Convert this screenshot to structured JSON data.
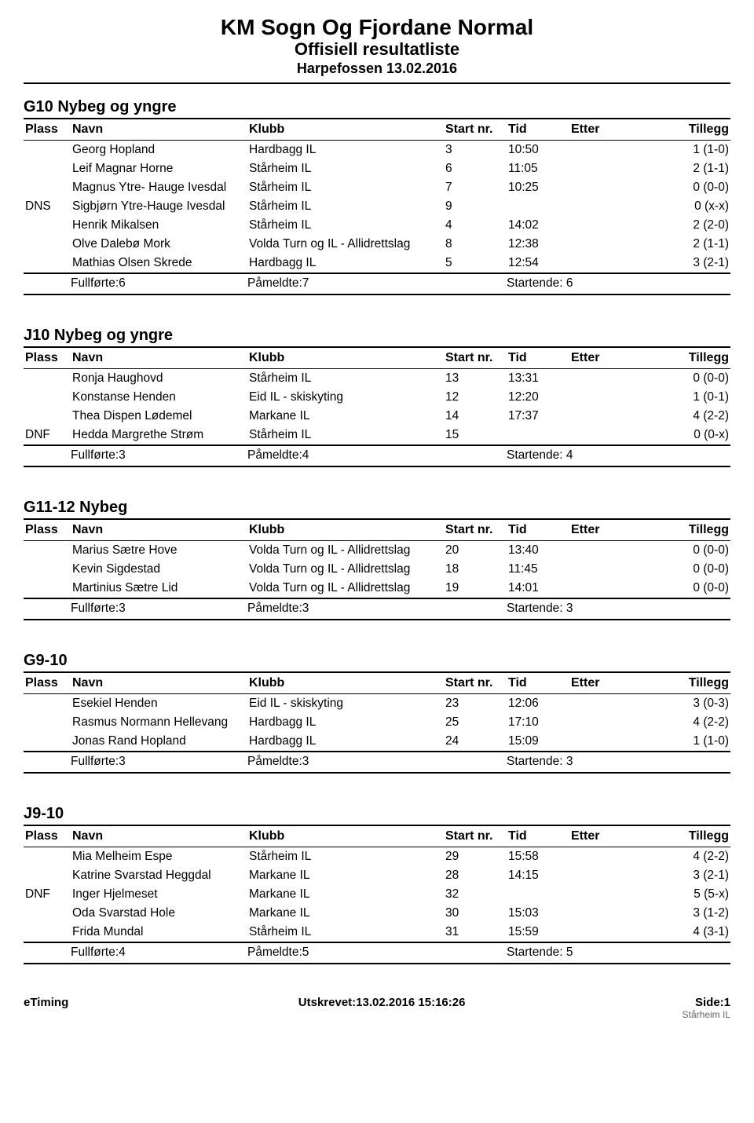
{
  "header": {
    "title": "KM Sogn Og Fjordane Normal",
    "subtitle": "Offisiell resultatliste",
    "venue": "Harpefossen 13.02.2016"
  },
  "columns": {
    "plass": "Plass",
    "navn": "Navn",
    "klubb": "Klubb",
    "start": "Start nr.",
    "tid": "Tid",
    "etter": "Etter",
    "tillegg": "Tillegg"
  },
  "summary_labels": {
    "fullforte": "Fullførte:",
    "pameldte": "Påmeldte:",
    "startende": "Startende:"
  },
  "footer": {
    "left": "eTiming",
    "center": "Utskrevet:13.02.2016 15:16:26",
    "right": "Side:1",
    "sub": "Stårheim IL"
  },
  "sections": [
    {
      "title": "G10 Nybeg og yngre",
      "rows": [
        {
          "plass": "",
          "navn": "Georg Hopland",
          "klubb": "Hardbagg IL",
          "start": "3",
          "tid": "10:50",
          "etter": "",
          "tillegg": "1 (1-0)"
        },
        {
          "plass": "",
          "navn": "Leif Magnar Horne",
          "klubb": "Stårheim IL",
          "start": "6",
          "tid": "11:05",
          "etter": "",
          "tillegg": "2 (1-1)"
        },
        {
          "plass": "",
          "navn": "Magnus Ytre- Hauge Ivesdal",
          "klubb": "Stårheim IL",
          "start": "7",
          "tid": "10:25",
          "etter": "",
          "tillegg": "0 (0-0)"
        },
        {
          "plass": "DNS",
          "navn": "Sigbjørn Ytre-Hauge Ivesdal",
          "klubb": "Stårheim IL",
          "start": "9",
          "tid": "",
          "etter": "",
          "tillegg": "0 (x-x)"
        },
        {
          "plass": "",
          "navn": "Henrik Mikalsen",
          "klubb": "Stårheim IL",
          "start": "4",
          "tid": "14:02",
          "etter": "",
          "tillegg": "2 (2-0)"
        },
        {
          "plass": "",
          "navn": "Olve Dalebø Mork",
          "klubb": "Volda Turn og IL - Allidrettslag",
          "start": "8",
          "tid": "12:38",
          "etter": "",
          "tillegg": "2 (1-1)"
        },
        {
          "plass": "",
          "navn": "Mathias Olsen Skrede",
          "klubb": "Hardbagg IL",
          "start": "5",
          "tid": "12:54",
          "etter": "",
          "tillegg": "3 (2-1)"
        }
      ],
      "summary": {
        "fullforte": "6",
        "pameldte": "7",
        "startende": "6"
      }
    },
    {
      "title": "J10 Nybeg og yngre",
      "rows": [
        {
          "plass": "",
          "navn": "Ronja Haughovd",
          "klubb": "Stårheim IL",
          "start": "13",
          "tid": "13:31",
          "etter": "",
          "tillegg": "0 (0-0)"
        },
        {
          "plass": "",
          "navn": "Konstanse Henden",
          "klubb": "Eid IL - skiskyting",
          "start": "12",
          "tid": "12:20",
          "etter": "",
          "tillegg": "1 (0-1)"
        },
        {
          "plass": "",
          "navn": "Thea Dispen Lødemel",
          "klubb": "Markane IL",
          "start": "14",
          "tid": "17:37",
          "etter": "",
          "tillegg": "4 (2-2)"
        },
        {
          "plass": "DNF",
          "navn": "Hedda Margrethe Strøm",
          "klubb": "Stårheim IL",
          "start": "15",
          "tid": "",
          "etter": "",
          "tillegg": "0 (0-x)"
        }
      ],
      "summary": {
        "fullforte": "3",
        "pameldte": "4",
        "startende": "4"
      }
    },
    {
      "title": "G11-12 Nybeg",
      "rows": [
        {
          "plass": "",
          "navn": "Marius Sætre Hove",
          "klubb": "Volda Turn og IL - Allidrettslag",
          "start": "20",
          "tid": "13:40",
          "etter": "",
          "tillegg": "0 (0-0)"
        },
        {
          "plass": "",
          "navn": "Kevin Sigdestad",
          "klubb": "Volda Turn og IL - Allidrettslag",
          "start": "18",
          "tid": "11:45",
          "etter": "",
          "tillegg": "0 (0-0)"
        },
        {
          "plass": "",
          "navn": "Martinius Sætre Lid",
          "klubb": "Volda Turn og IL - Allidrettslag",
          "start": "19",
          "tid": "14:01",
          "etter": "",
          "tillegg": "0 (0-0)"
        }
      ],
      "summary": {
        "fullforte": "3",
        "pameldte": "3",
        "startende": "3"
      }
    },
    {
      "title": "G9-10",
      "rows": [
        {
          "plass": "",
          "navn": "Esekiel Henden",
          "klubb": "Eid IL - skiskyting",
          "start": "23",
          "tid": "12:06",
          "etter": "",
          "tillegg": "3 (0-3)"
        },
        {
          "plass": "",
          "navn": "Rasmus Normann Hellevang",
          "klubb": "Hardbagg IL",
          "start": "25",
          "tid": "17:10",
          "etter": "",
          "tillegg": "4 (2-2)"
        },
        {
          "plass": "",
          "navn": "Jonas Rand Hopland",
          "klubb": "Hardbagg IL",
          "start": "24",
          "tid": "15:09",
          "etter": "",
          "tillegg": "1 (1-0)"
        }
      ],
      "summary": {
        "fullforte": "3",
        "pameldte": "3",
        "startende": "3"
      }
    },
    {
      "title": "J9-10",
      "rows": [
        {
          "plass": "",
          "navn": "Mia Melheim Espe",
          "klubb": "Stårheim IL",
          "start": "29",
          "tid": "15:58",
          "etter": "",
          "tillegg": "4 (2-2)"
        },
        {
          "plass": "",
          "navn": "Katrine Svarstad Heggdal",
          "klubb": "Markane IL",
          "start": "28",
          "tid": "14:15",
          "etter": "",
          "tillegg": "3 (2-1)"
        },
        {
          "plass": "DNF",
          "navn": "Inger Hjelmeset",
          "klubb": "Markane IL",
          "start": "32",
          "tid": "",
          "etter": "",
          "tillegg": "5 (5-x)"
        },
        {
          "plass": "",
          "navn": "Oda Svarstad Hole",
          "klubb": "Markane IL",
          "start": "30",
          "tid": "15:03",
          "etter": "",
          "tillegg": "3 (1-2)"
        },
        {
          "plass": "",
          "navn": "Frida Mundal",
          "klubb": "Stårheim IL",
          "start": "31",
          "tid": "15:59",
          "etter": "",
          "tillegg": "4 (3-1)"
        }
      ],
      "summary": {
        "fullforte": "4",
        "pameldte": "5",
        "startende": "5"
      }
    }
  ]
}
